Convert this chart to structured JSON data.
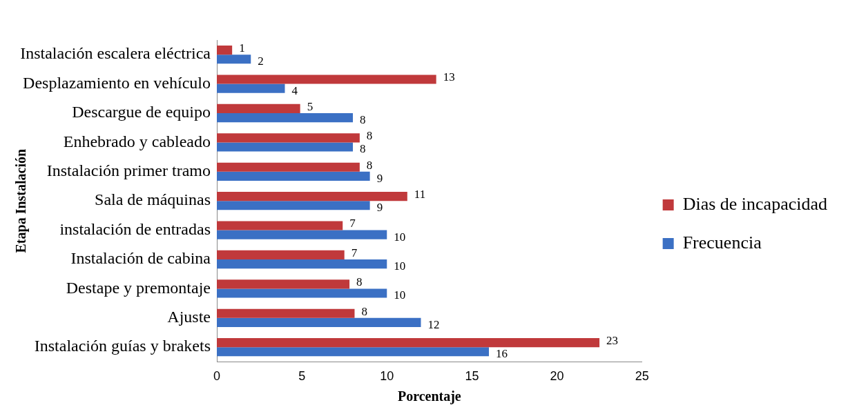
{
  "chart_data": {
    "type": "bar",
    "orientation": "horizontal",
    "xlabel": "Porcentaje",
    "ylabel": "Etapa Instalación",
    "categories": [
      "Instalación escalera eléctrica",
      "Desplazamiento en vehículo",
      "Descargue de equipo",
      "Enhebrado y cableado",
      "Instalación primer tramo",
      "Sala de máquinas",
      "instalación de entradas",
      "Instalación de cabina",
      "Destape y premontaje",
      "Ajuste",
      "Instalación guías y brakets"
    ],
    "series": [
      {
        "name": "Dias de incapacidad",
        "color": "#c0393b",
        "values": [
          0.9,
          12.9,
          4.9,
          8.4,
          8.4,
          11.2,
          7.4,
          7.5,
          7.8,
          8.1,
          22.5
        ],
        "value_labels": [
          "1",
          "13",
          "5",
          "8",
          "8",
          "11",
          "7",
          "7",
          "8",
          "8",
          "23"
        ]
      },
      {
        "name": "Frecuencia",
        "color": "#3b70c4",
        "values": [
          2,
          4,
          8,
          8,
          9,
          9,
          10,
          10,
          10,
          12,
          16
        ],
        "value_labels": [
          "2",
          "4",
          "8",
          "8",
          "9",
          "9",
          "10",
          "10",
          "10",
          "12",
          "16"
        ]
      }
    ],
    "xlim": [
      0,
      25
    ],
    "xticks": [
      0,
      5,
      10,
      15,
      20,
      25
    ],
    "grid": false,
    "legend": "right"
  }
}
